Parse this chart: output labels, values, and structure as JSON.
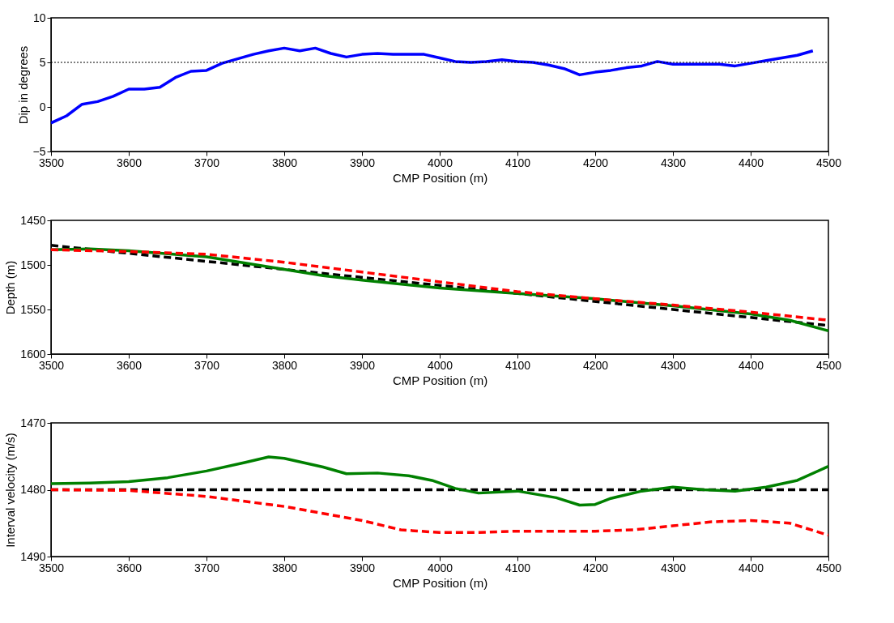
{
  "chart_data": [
    {
      "type": "line",
      "xlabel": "CMP Position (m)",
      "ylabel": "Dip in degrees",
      "xlim": [
        3500,
        4500
      ],
      "xticks": [
        3500,
        3600,
        3700,
        3800,
        3900,
        4000,
        4100,
        4200,
        4300,
        4400,
        4500
      ],
      "ylim": [
        -5,
        10
      ],
      "yticks": [
        -5,
        0,
        5,
        10
      ],
      "ref_lines": [
        {
          "axis": "y",
          "value": 5,
          "color": "#000000",
          "line_style": "dotted"
        }
      ],
      "series": [
        {
          "color": "#0000ff",
          "line_style": "solid",
          "x": [
            3500,
            3520,
            3540,
            3560,
            3580,
            3600,
            3620,
            3640,
            3660,
            3680,
            3700,
            3720,
            3740,
            3760,
            3780,
            3800,
            3820,
            3840,
            3860,
            3880,
            3900,
            3920,
            3940,
            3960,
            3980,
            4000,
            4020,
            4040,
            4060,
            4080,
            4100,
            4120,
            4140,
            4160,
            4180,
            4200,
            4220,
            4240,
            4260,
            4280,
            4300,
            4320,
            4340,
            4360,
            4380,
            4400,
            4420,
            4440,
            4460,
            4480
          ],
          "values": [
            -1.8,
            -1,
            0.3,
            0.6,
            1.2,
            2,
            2,
            2.2,
            3.3,
            4,
            4.1,
            4.9,
            5.4,
            5.9,
            6.3,
            6.6,
            6.3,
            6.6,
            6,
            5.6,
            5.9,
            6,
            5.9,
            5.9,
            5.9,
            5.5,
            5.1,
            5,
            5.1,
            5.3,
            5.1,
            5,
            4.7,
            4.3,
            3.6,
            3.9,
            4.1,
            4.4,
            4.6,
            5.1,
            4.8,
            4.8,
            4.8,
            4.8,
            4.6,
            4.9,
            5.2,
            5.5,
            5.8,
            6.3
          ]
        }
      ]
    },
    {
      "type": "line",
      "xlabel": "CMP Position (m)",
      "ylabel": "Depth (m)",
      "xlim": [
        3500,
        4500
      ],
      "xticks": [
        3500,
        3600,
        3700,
        3800,
        3900,
        4000,
        4100,
        4200,
        4300,
        4400,
        4500
      ],
      "ylim": [
        1600,
        1450
      ],
      "yticks": [
        1450,
        1500,
        1550,
        1600
      ],
      "series": [
        {
          "color": "#000000",
          "line_style": "dashed",
          "x": [
            3500,
            4500
          ],
          "values": [
            1478,
            1568
          ]
        },
        {
          "color": "#008000",
          "line_style": "solid",
          "x": [
            3500,
            3550,
            3600,
            3700,
            3800,
            3850,
            3900,
            4000,
            4100,
            4200,
            4300,
            4400,
            4450,
            4500
          ],
          "values": [
            1483,
            1482,
            1484,
            1491,
            1505,
            1512,
            1517,
            1526,
            1532,
            1538,
            1546,
            1555,
            1562,
            1574
          ]
        },
        {
          "color": "#ff0000",
          "line_style": "dashed",
          "x": [
            3500,
            3600,
            3700,
            3800,
            3900,
            4000,
            4100,
            4200,
            4300,
            4400,
            4500
          ],
          "values": [
            1483,
            1485,
            1488,
            1497,
            1508,
            1519,
            1530,
            1538,
            1545,
            1553,
            1562
          ]
        }
      ]
    },
    {
      "type": "line",
      "xlabel": "CMP Position (m)",
      "ylabel": "Interval velocity (m/s)",
      "xlim": [
        3500,
        4500
      ],
      "xticks": [
        3500,
        3600,
        3700,
        3800,
        3900,
        4000,
        4100,
        4200,
        4300,
        4400,
        4500
      ],
      "ylim": [
        1490,
        1470
      ],
      "yticks": [
        1470,
        1480,
        1490
      ],
      "series": [
        {
          "color": "#000000",
          "line_style": "dashed",
          "x": [
            3500,
            4500
          ],
          "values": [
            1480,
            1480
          ]
        },
        {
          "color": "#ff0000",
          "line_style": "dashed",
          "x": [
            3500,
            3600,
            3700,
            3800,
            3900,
            3950,
            4000,
            4050,
            4100,
            4200,
            4250,
            4300,
            4350,
            4400,
            4450,
            4500
          ],
          "values": [
            1480,
            1480.1,
            1481,
            1482.5,
            1484.6,
            1486,
            1486.4,
            1486.4,
            1486.2,
            1486.2,
            1486,
            1485.4,
            1484.8,
            1484.6,
            1485,
            1486.8
          ]
        },
        {
          "color": "#008000",
          "line_style": "solid",
          "x": [
            3500,
            3550,
            3600,
            3650,
            3700,
            3750,
            3780,
            3800,
            3850,
            3880,
            3920,
            3960,
            3990,
            4020,
            4050,
            4100,
            4150,
            4180,
            4200,
            4220,
            4260,
            4300,
            4340,
            4380,
            4420,
            4460,
            4500
          ],
          "values": [
            1479.1,
            1479,
            1478.8,
            1478.2,
            1477.2,
            1475.9,
            1475.1,
            1475.3,
            1476.6,
            1477.6,
            1477.5,
            1477.9,
            1478.6,
            1479.8,
            1480.5,
            1480.2,
            1481.2,
            1482.3,
            1482.2,
            1481.3,
            1480.2,
            1479.6,
            1480,
            1480.2,
            1479.6,
            1478.6,
            1476.5
          ]
        }
      ]
    }
  ]
}
